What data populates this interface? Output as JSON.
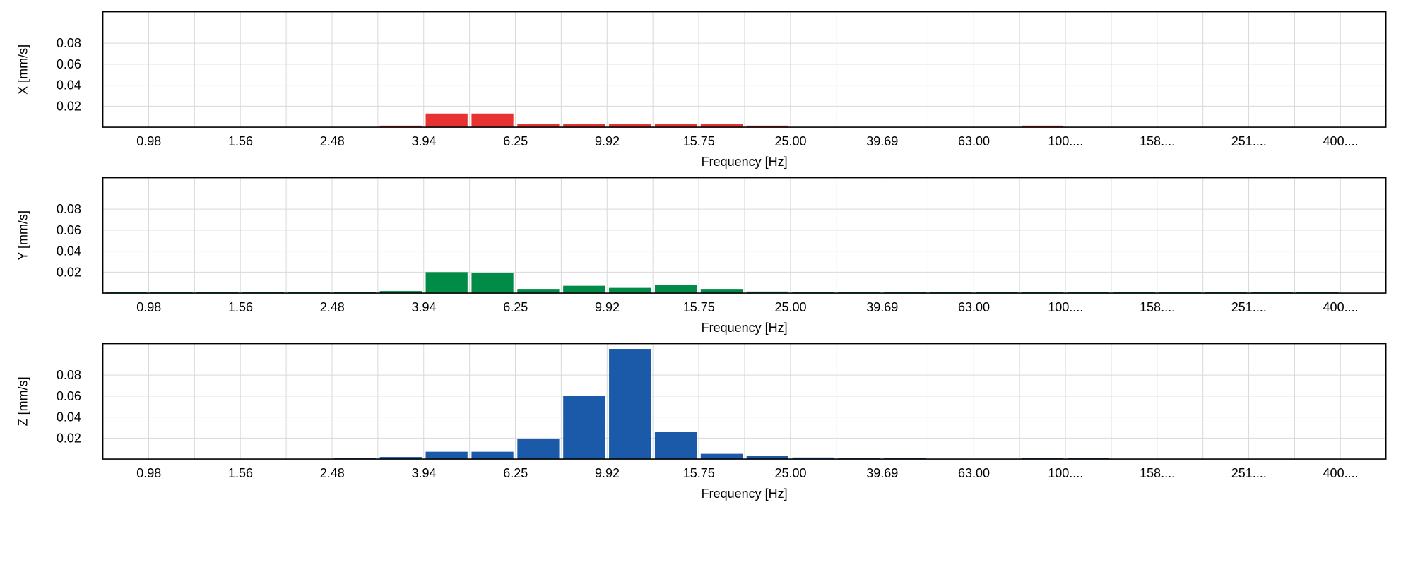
{
  "chart_data": [
    {
      "type": "bar",
      "ylabel": "X [mm/s]",
      "xlabel": "Frequency [Hz]",
      "color": "#e83232",
      "ylim": [
        0,
        0.11
      ],
      "ytick_labels": [
        "0.02",
        "0.04",
        "0.06",
        "0.08"
      ],
      "xtick_labels": [
        "0.98",
        "1.56",
        "2.48",
        "3.94",
        "6.25",
        "9.92",
        "15.75",
        "25.00",
        "39.69",
        "63.00",
        "100....",
        "158....",
        "251....",
        "400...."
      ],
      "values": [
        0,
        0,
        0,
        0,
        0,
        0,
        0.0015,
        0.013,
        0.013,
        0.003,
        0.003,
        0.003,
        0.003,
        0.003,
        0.0015,
        0,
        0,
        0,
        0,
        0,
        0.0015,
        0,
        0,
        0,
        0,
        0,
        0
      ],
      "grid": true
    },
    {
      "type": "bar",
      "ylabel": "Y [mm/s]",
      "xlabel": "Frequency [Hz]",
      "color": "#008c46",
      "ylim": [
        0,
        0.11
      ],
      "ytick_labels": [
        "0.02",
        "0.04",
        "0.06",
        "0.08"
      ],
      "xtick_labels": [
        "0.98",
        "1.56",
        "2.48",
        "3.94",
        "6.25",
        "9.92",
        "15.75",
        "25.00",
        "39.69",
        "63.00",
        "100....",
        "158....",
        "251....",
        "400...."
      ],
      "values": [
        0.001,
        0.001,
        0.001,
        0.001,
        0.001,
        0.001,
        0.002,
        0.02,
        0.019,
        0.004,
        0.007,
        0.005,
        0.008,
        0.004,
        0.0015,
        0.001,
        0.001,
        0.001,
        0.001,
        0.001,
        0.001,
        0.001,
        0.001,
        0.001,
        0.001,
        0.001,
        0.001
      ],
      "grid": true
    },
    {
      "type": "bar",
      "ylabel": "Z [mm/s]",
      "xlabel": "Frequency [Hz]",
      "color": "#1a5aa8",
      "ylim": [
        0,
        0.11
      ],
      "ytick_labels": [
        "0.02",
        "0.04",
        "0.06",
        "0.08"
      ],
      "xtick_labels": [
        "0.98",
        "1.56",
        "2.48",
        "3.94",
        "6.25",
        "9.92",
        "15.75",
        "25.00",
        "39.69",
        "63.00",
        "100....",
        "158....",
        "251....",
        "400...."
      ],
      "values": [
        0,
        0,
        0,
        0,
        0,
        0.0005,
        0.002,
        0.007,
        0.007,
        0.019,
        0.06,
        0.105,
        0.026,
        0.005,
        0.003,
        0.0015,
        0.001,
        0.001,
        0,
        0,
        0.001,
        0.001,
        0,
        0,
        0,
        0,
        0
      ],
      "grid": true
    }
  ]
}
